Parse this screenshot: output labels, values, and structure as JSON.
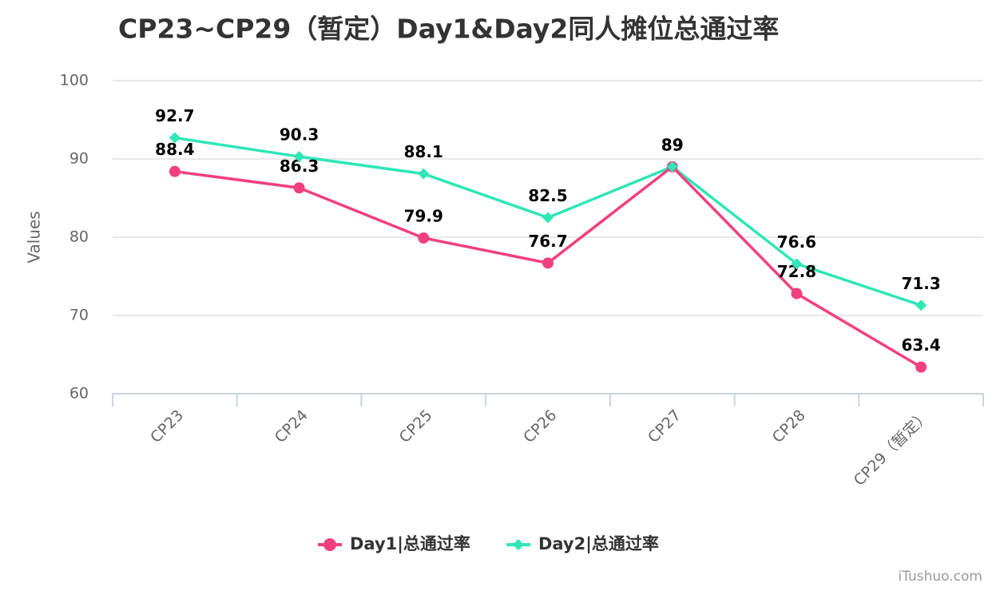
{
  "chart_data": {
    "type": "line",
    "title": "CP23~CP29（暂定）Day1&Day2同人摊位总通过率",
    "y_label": "Values",
    "categories": [
      "CP23",
      "CP24",
      "CP25",
      "CP26",
      "CP27",
      "CP28",
      "CP29（暂定）"
    ],
    "series": [
      {
        "name": "Day1|总通过率",
        "color": "#f23f7e",
        "marker": "circle",
        "values": [
          88.4,
          86.3,
          79.9,
          76.7,
          89,
          72.8,
          63.4
        ]
      },
      {
        "name": "Day2|总通过率",
        "color": "#2ee6b6",
        "marker": "diamond",
        "values": [
          92.7,
          90.3,
          88.1,
          82.5,
          89,
          76.6,
          71.3
        ]
      }
    ],
    "ylim": [
      60,
      100
    ],
    "yticks": [
      60,
      70,
      80,
      90,
      100
    ],
    "grid": true,
    "legend": "bottom",
    "watermark": "iTushuo.com"
  }
}
